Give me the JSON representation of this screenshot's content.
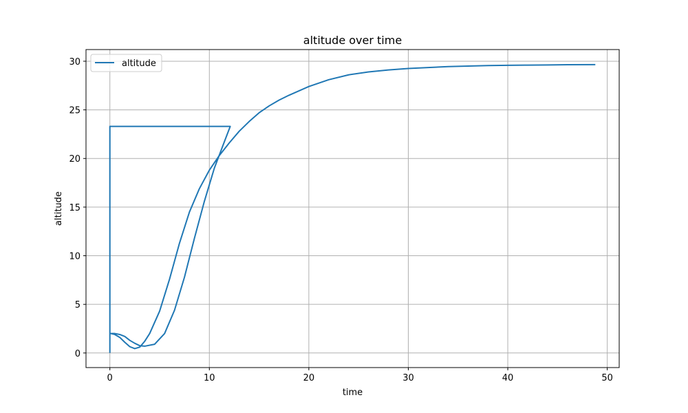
{
  "chart_data": {
    "type": "line",
    "title": "altitude over time",
    "xlabel": "time",
    "ylabel": "altitude",
    "xlim": [
      -2.4,
      51.2
    ],
    "ylim": [
      -1.5,
      31.2
    ],
    "xticks": [
      0,
      10,
      20,
      30,
      40,
      50
    ],
    "yticks": [
      0,
      5,
      10,
      15,
      20,
      25,
      30
    ],
    "grid": true,
    "legend_position": "top-left",
    "series": [
      {
        "name": "altitude",
        "color": "#1f77b4",
        "x": [
          0,
          0,
          0,
          12.1,
          11.5,
          10.5,
          9.5,
          8.5,
          7.5,
          6.5,
          5.5,
          4.5,
          3.5,
          3.0,
          2.5,
          2.0,
          1.5,
          1.0,
          0.5,
          0.1,
          0.5,
          1.0,
          1.5,
          2.0,
          2.5,
          3.0,
          3.5,
          4.0,
          5.0,
          6.0,
          7.0,
          8.0,
          9.0,
          10.0,
          11.0,
          12.0,
          13.0,
          14.0,
          15.0,
          16.0,
          17.0,
          18.0,
          20.0,
          22.0,
          24.0,
          26.0,
          28.0,
          30.0,
          32.0,
          34.0,
          36.0,
          38.0,
          40.0,
          42.0,
          44.0,
          46.0,
          48.8
        ],
        "y": [
          0,
          23.3,
          23.3,
          23.3,
          21.7,
          19.0,
          15.6,
          11.8,
          7.8,
          4.4,
          2.0,
          0.9,
          0.7,
          0.75,
          1.0,
          1.3,
          1.7,
          1.9,
          2.0,
          2.0,
          1.9,
          1.6,
          1.1,
          0.65,
          0.45,
          0.6,
          1.2,
          2.0,
          4.3,
          7.6,
          11.3,
          14.5,
          16.9,
          18.8,
          20.3,
          21.6,
          22.8,
          23.8,
          24.7,
          25.4,
          26.0,
          26.5,
          27.4,
          28.1,
          28.6,
          28.9,
          29.1,
          29.25,
          29.35,
          29.45,
          29.5,
          29.55,
          29.58,
          29.6,
          29.62,
          29.64,
          29.65
        ]
      }
    ]
  }
}
